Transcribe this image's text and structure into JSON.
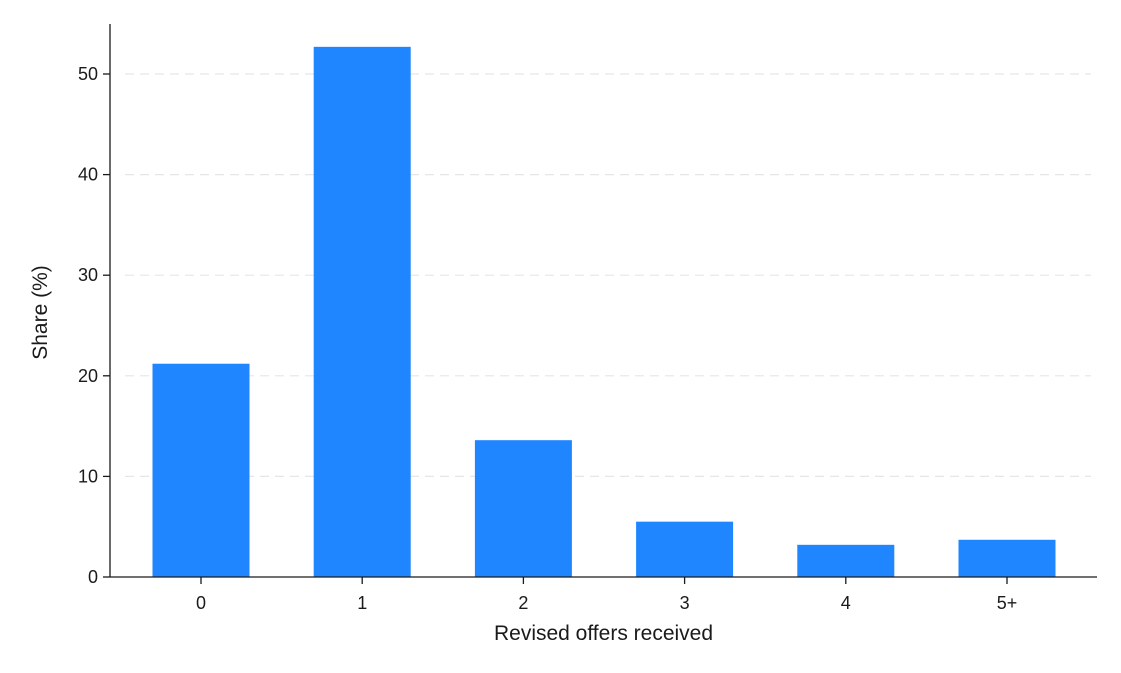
{
  "chart_data": {
    "type": "bar",
    "categories": [
      "0",
      "1",
      "2",
      "3",
      "4",
      "5+"
    ],
    "values": [
      21.2,
      52.7,
      13.6,
      5.5,
      3.2,
      3.7
    ],
    "title": "",
    "xlabel": "Revised offers received",
    "ylabel": "Share (%)",
    "ylim": [
      0,
      55
    ],
    "yticks": [
      0,
      10,
      20,
      30,
      40,
      50
    ],
    "grid": true,
    "bar_color": "#1f86ff"
  }
}
